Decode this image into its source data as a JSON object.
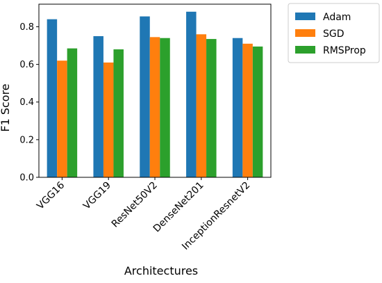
{
  "chart_data": {
    "type": "bar",
    "xlabel": "Architectures",
    "ylabel": "F1 Score",
    "categories": [
      "VGG16",
      "VGG19",
      "ResNet50V2",
      "DenseNet201",
      "InceptionResnetV2"
    ],
    "series": [
      {
        "name": "Adam",
        "color": "#1f77b4",
        "values": [
          0.84,
          0.75,
          0.855,
          0.88,
          0.74
        ]
      },
      {
        "name": "SGD",
        "color": "#ff7f0e",
        "values": [
          0.62,
          0.61,
          0.745,
          0.76,
          0.71
        ]
      },
      {
        "name": "RMSProp",
        "color": "#2ca02c",
        "values": [
          0.685,
          0.68,
          0.74,
          0.735,
          0.695
        ]
      }
    ],
    "ylim": [
      0,
      0.92
    ],
    "yticks": [
      0.0,
      0.2,
      0.4,
      0.6,
      0.8
    ],
    "ytick_labels": [
      "0.0",
      "0.2",
      "0.4",
      "0.6",
      "0.8"
    ],
    "legend_position": "outside-right-top",
    "grid": false
  }
}
